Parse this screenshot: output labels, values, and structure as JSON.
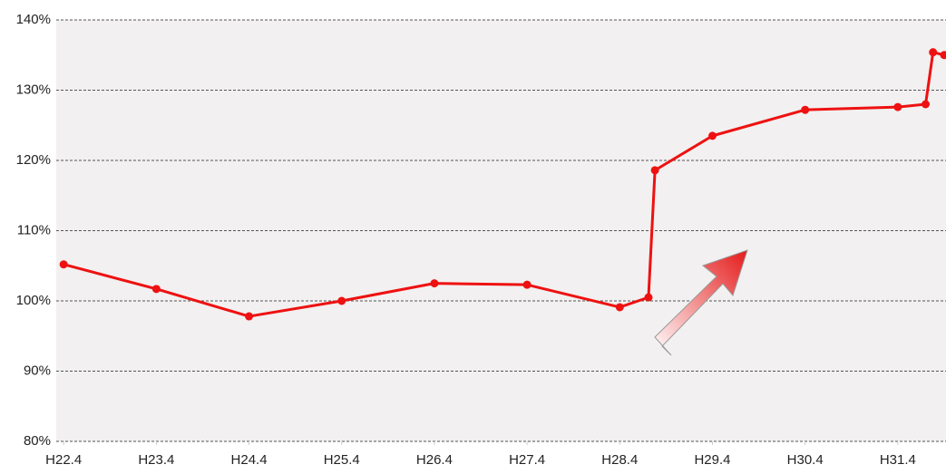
{
  "chart_data": {
    "type": "line",
    "x": [
      22,
      23,
      24,
      25,
      26,
      27,
      28,
      28.31,
      28.38,
      29,
      30,
      31,
      31.3,
      31.38,
      31.5
    ],
    "series": [
      {
        "color": "#ee1111",
        "values": [
          105.2,
          101.7,
          97.8,
          100.0,
          102.5,
          102.3,
          99.1,
          100.5,
          118.6,
          123.5,
          127.2,
          127.6,
          128.0,
          135.4,
          135.0
        ]
      }
    ],
    "xlim": [
      21.92,
      31.52
    ],
    "xticks": [
      {
        "value": 22,
        "label": "H22.4"
      },
      {
        "value": 23,
        "label": "H23.4"
      },
      {
        "value": 24,
        "label": "H24.4"
      },
      {
        "value": 25,
        "label": "H25.4"
      },
      {
        "value": 26,
        "label": "H26.4"
      },
      {
        "value": 27,
        "label": "H27.4"
      },
      {
        "value": 28,
        "label": "H28.4"
      },
      {
        "value": 29,
        "label": "H29.4"
      },
      {
        "value": 30,
        "label": "H30.4"
      },
      {
        "value": 31,
        "label": "H31.4"
      }
    ],
    "ylim": [
      80,
      140
    ],
    "yticks": [
      {
        "value": 80,
        "label": "80%"
      },
      {
        "value": 90,
        "label": "90%"
      },
      {
        "value": 100,
        "label": "100%"
      },
      {
        "value": 110,
        "label": "110%"
      },
      {
        "value": 120,
        "label": "120%"
      },
      {
        "value": 130,
        "label": "130%"
      },
      {
        "value": 140,
        "label": "140%"
      }
    ],
    "grid": true
  }
}
